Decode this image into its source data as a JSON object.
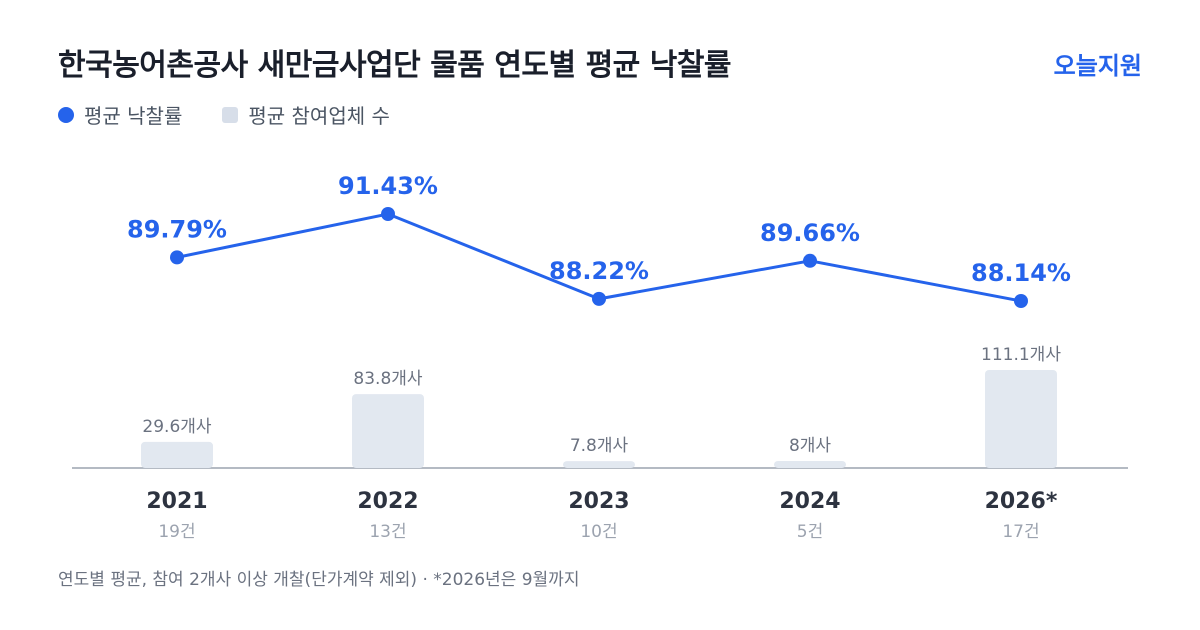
{
  "header": {
    "title": "한국농어촌공사 새만금사업단 물품 연도별 평균 낙찰률",
    "brand": "오늘지원"
  },
  "legend": {
    "rate_label": "평균 낙찰률",
    "participants_label": "평균 참여업체 수"
  },
  "footnote": "연도별 평균, 참여 2개사 이상 개찰(단가계약 제외) · *2026년은 9월까지",
  "colors": {
    "accent": "#2563eb",
    "bar": "#e2e8f0",
    "axis": "#9ca3af",
    "title": "#1a1f2b"
  },
  "chart_data": {
    "type": "bar+line",
    "categories": [
      "2021",
      "2022",
      "2023",
      "2024",
      "2026*"
    ],
    "counts": [
      "19건",
      "13건",
      "10건",
      "5건",
      "17건"
    ],
    "series": [
      {
        "name": "평균 낙찰률",
        "type": "line",
        "values": [
          89.79,
          91.43,
          88.22,
          89.66,
          88.14
        ],
        "labels": [
          "89.79%",
          "91.43%",
          "88.22%",
          "89.66%",
          "88.14%"
        ]
      },
      {
        "name": "평균 참여업체 수",
        "type": "bar",
        "values": [
          29.6,
          83.8,
          7.8,
          8,
          111.1
        ],
        "labels": [
          "29.6개사",
          "83.8개사",
          "7.8개사",
          "8개사",
          "111.1개사"
        ]
      }
    ],
    "legend": "top-left",
    "grid": false
  }
}
